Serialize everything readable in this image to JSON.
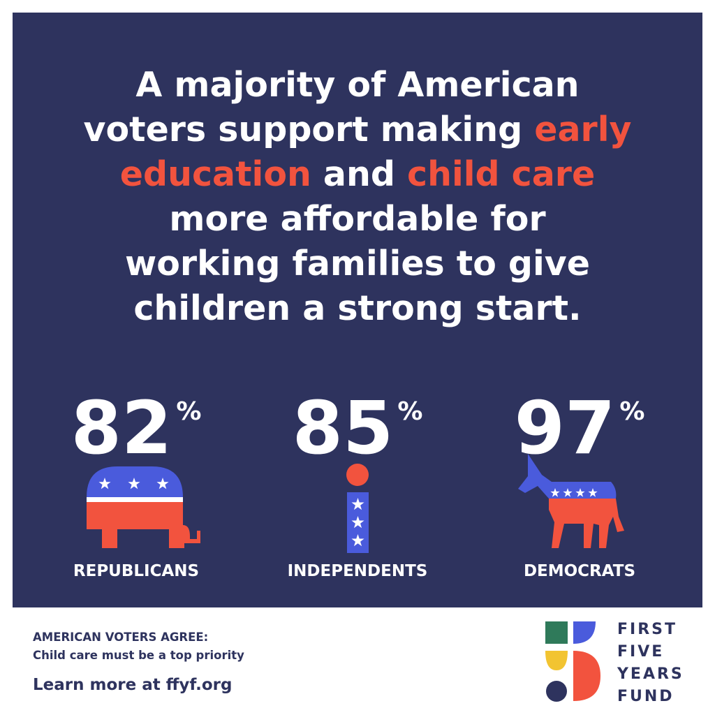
{
  "headline": {
    "lines": [
      [
        {
          "text": "A majority of American",
          "accent": false
        }
      ],
      [
        {
          "text": "voters support making ",
          "accent": false
        },
        {
          "text": "early",
          "accent": true
        }
      ],
      [
        {
          "text": "education",
          "accent": true
        },
        {
          "text": " and ",
          "accent": false
        },
        {
          "text": "child care",
          "accent": true
        }
      ],
      [
        {
          "text": "more affordable for",
          "accent": false
        }
      ],
      [
        {
          "text": "working families to give",
          "accent": false
        }
      ],
      [
        {
          "text": "children a strong start.",
          "accent": false
        }
      ]
    ]
  },
  "stats": [
    {
      "value": 82,
      "unit": "%",
      "label": "REPUBLICANS"
    },
    {
      "value": 85,
      "unit": "%",
      "label": "INDEPENDENTS"
    },
    {
      "value": 97,
      "unit": "%",
      "label": "DEMOCRATS"
    }
  ],
  "footer": {
    "heading": "AMERICAN VOTERS AGREE:",
    "subheading": "Child care must be a top priority",
    "link": "Learn more at ffyf.org"
  },
  "logo": {
    "lines": [
      "FIRST",
      "FIVE",
      "YEARS",
      "FUND"
    ]
  }
}
